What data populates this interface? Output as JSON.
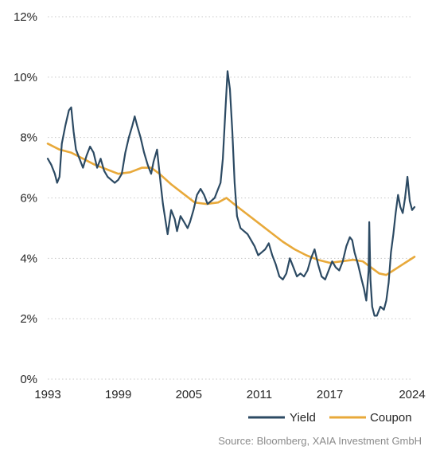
{
  "chart_data": {
    "type": "line",
    "title": "",
    "xlabel": "",
    "ylabel": "",
    "xlim": [
      1993,
      2024.2
    ],
    "ylim": [
      0,
      12
    ],
    "x_ticks": [
      1993,
      1999,
      2005,
      2011,
      2017,
      2024
    ],
    "y_ticks": [
      {
        "value": 0,
        "label": "0%"
      },
      {
        "value": 2,
        "label": "2%"
      },
      {
        "value": 4,
        "label": "4%"
      },
      {
        "value": 6,
        "label": "6%"
      },
      {
        "value": 8,
        "label": "8%"
      },
      {
        "value": 10,
        "label": "10%"
      },
      {
        "value": 12,
        "label": "12%"
      }
    ],
    "grid": "horizontal dotted",
    "legend": {
      "placement": "bottom-right",
      "entries": [
        "Yield",
        "Coupon"
      ]
    },
    "series": [
      {
        "name": "Yield",
        "color": "#2c4a63",
        "points": [
          [
            1993.0,
            7.3
          ],
          [
            1993.3,
            7.1
          ],
          [
            1993.6,
            6.8
          ],
          [
            1993.8,
            6.5
          ],
          [
            1994.0,
            6.7
          ],
          [
            1994.2,
            7.8
          ],
          [
            1994.5,
            8.4
          ],
          [
            1994.8,
            8.9
          ],
          [
            1995.0,
            9.0
          ],
          [
            1995.2,
            8.2
          ],
          [
            1995.4,
            7.6
          ],
          [
            1995.7,
            7.3
          ],
          [
            1996.0,
            7.0
          ],
          [
            1996.3,
            7.4
          ],
          [
            1996.6,
            7.7
          ],
          [
            1996.9,
            7.5
          ],
          [
            1997.2,
            7.0
          ],
          [
            1997.5,
            7.3
          ],
          [
            1997.8,
            6.9
          ],
          [
            1998.1,
            6.7
          ],
          [
            1998.4,
            6.6
          ],
          [
            1998.7,
            6.5
          ],
          [
            1999.0,
            6.6
          ],
          [
            1999.3,
            6.8
          ],
          [
            1999.6,
            7.5
          ],
          [
            1999.9,
            8.0
          ],
          [
            2000.2,
            8.4
          ],
          [
            2000.4,
            8.7
          ],
          [
            2000.6,
            8.4
          ],
          [
            2000.9,
            8.0
          ],
          [
            2001.2,
            7.5
          ],
          [
            2001.5,
            7.1
          ],
          [
            2001.8,
            6.8
          ],
          [
            2002.0,
            7.2
          ],
          [
            2002.3,
            7.6
          ],
          [
            2002.6,
            6.5
          ],
          [
            2002.8,
            5.8
          ],
          [
            2003.0,
            5.3
          ],
          [
            2003.2,
            4.8
          ],
          [
            2003.5,
            5.6
          ],
          [
            2003.8,
            5.3
          ],
          [
            2004.0,
            4.9
          ],
          [
            2004.3,
            5.4
          ],
          [
            2004.6,
            5.2
          ],
          [
            2004.9,
            5.0
          ],
          [
            2005.1,
            5.2
          ],
          [
            2005.4,
            5.6
          ],
          [
            2005.7,
            6.1
          ],
          [
            2006.0,
            6.3
          ],
          [
            2006.3,
            6.1
          ],
          [
            2006.6,
            5.8
          ],
          [
            2006.9,
            5.9
          ],
          [
            2007.2,
            6.0
          ],
          [
            2007.5,
            6.3
          ],
          [
            2007.7,
            6.5
          ],
          [
            2007.9,
            7.3
          ],
          [
            2008.1,
            8.8
          ],
          [
            2008.3,
            10.2
          ],
          [
            2008.5,
            9.6
          ],
          [
            2008.7,
            8.2
          ],
          [
            2008.9,
            6.5
          ],
          [
            2009.1,
            5.4
          ],
          [
            2009.4,
            5.0
          ],
          [
            2009.7,
            4.9
          ],
          [
            2010.0,
            4.8
          ],
          [
            2010.3,
            4.6
          ],
          [
            2010.6,
            4.4
          ],
          [
            2010.9,
            4.1
          ],
          [
            2011.2,
            4.2
          ],
          [
            2011.5,
            4.3
          ],
          [
            2011.8,
            4.5
          ],
          [
            2012.1,
            4.1
          ],
          [
            2012.4,
            3.8
          ],
          [
            2012.7,
            3.4
          ],
          [
            2013.0,
            3.3
          ],
          [
            2013.3,
            3.5
          ],
          [
            2013.6,
            4.0
          ],
          [
            2013.9,
            3.7
          ],
          [
            2014.2,
            3.4
          ],
          [
            2014.5,
            3.5
          ],
          [
            2014.8,
            3.4
          ],
          [
            2015.1,
            3.6
          ],
          [
            2015.4,
            4.0
          ],
          [
            2015.7,
            4.3
          ],
          [
            2016.0,
            3.8
          ],
          [
            2016.3,
            3.4
          ],
          [
            2016.6,
            3.3
          ],
          [
            2016.9,
            3.6
          ],
          [
            2017.2,
            3.9
          ],
          [
            2017.5,
            3.7
          ],
          [
            2017.8,
            3.6
          ],
          [
            2018.1,
            3.9
          ],
          [
            2018.4,
            4.4
          ],
          [
            2018.7,
            4.7
          ],
          [
            2018.9,
            4.6
          ],
          [
            2019.1,
            4.2
          ],
          [
            2019.4,
            3.8
          ],
          [
            2019.7,
            3.3
          ],
          [
            2019.9,
            3.0
          ],
          [
            2020.1,
            2.6
          ],
          [
            2020.3,
            3.6
          ],
          [
            2020.35,
            5.2
          ],
          [
            2020.45,
            3.3
          ],
          [
            2020.6,
            2.4
          ],
          [
            2020.8,
            2.1
          ],
          [
            2021.0,
            2.1
          ],
          [
            2021.3,
            2.4
          ],
          [
            2021.6,
            2.3
          ],
          [
            2021.8,
            2.6
          ],
          [
            2022.0,
            3.2
          ],
          [
            2022.2,
            4.2
          ],
          [
            2022.4,
            4.8
          ],
          [
            2022.6,
            5.5
          ],
          [
            2022.8,
            6.1
          ],
          [
            2023.0,
            5.7
          ],
          [
            2023.2,
            5.5
          ],
          [
            2023.4,
            6.0
          ],
          [
            2023.6,
            6.7
          ],
          [
            2023.8,
            5.9
          ],
          [
            2024.0,
            5.6
          ],
          [
            2024.2,
            5.7
          ]
        ]
      },
      {
        "name": "Coupon",
        "color": "#e8a93a",
        "points": [
          [
            1993.0,
            7.8
          ],
          [
            1994.0,
            7.6
          ],
          [
            1995.0,
            7.5
          ],
          [
            1996.0,
            7.3
          ],
          [
            1997.0,
            7.1
          ],
          [
            1998.0,
            6.95
          ],
          [
            1999.0,
            6.8
          ],
          [
            2000.0,
            6.85
          ],
          [
            2001.0,
            7.0
          ],
          [
            2001.8,
            7.0
          ],
          [
            2002.5,
            6.8
          ],
          [
            2003.5,
            6.45
          ],
          [
            2004.5,
            6.15
          ],
          [
            2005.5,
            5.85
          ],
          [
            2006.5,
            5.8
          ],
          [
            2007.5,
            5.85
          ],
          [
            2008.2,
            6.0
          ],
          [
            2009.0,
            5.75
          ],
          [
            2010.0,
            5.45
          ],
          [
            2011.0,
            5.15
          ],
          [
            2012.0,
            4.85
          ],
          [
            2013.0,
            4.55
          ],
          [
            2014.0,
            4.3
          ],
          [
            2015.0,
            4.1
          ],
          [
            2016.0,
            3.95
          ],
          [
            2017.0,
            3.85
          ],
          [
            2018.0,
            3.9
          ],
          [
            2019.0,
            3.95
          ],
          [
            2019.8,
            3.9
          ],
          [
            2020.5,
            3.7
          ],
          [
            2021.2,
            3.5
          ],
          [
            2021.8,
            3.45
          ],
          [
            2022.4,
            3.6
          ],
          [
            2023.0,
            3.75
          ],
          [
            2023.6,
            3.9
          ],
          [
            2024.2,
            4.05
          ]
        ]
      }
    ],
    "source": "Source: Bloomberg, XAIA Investment GmbH"
  }
}
